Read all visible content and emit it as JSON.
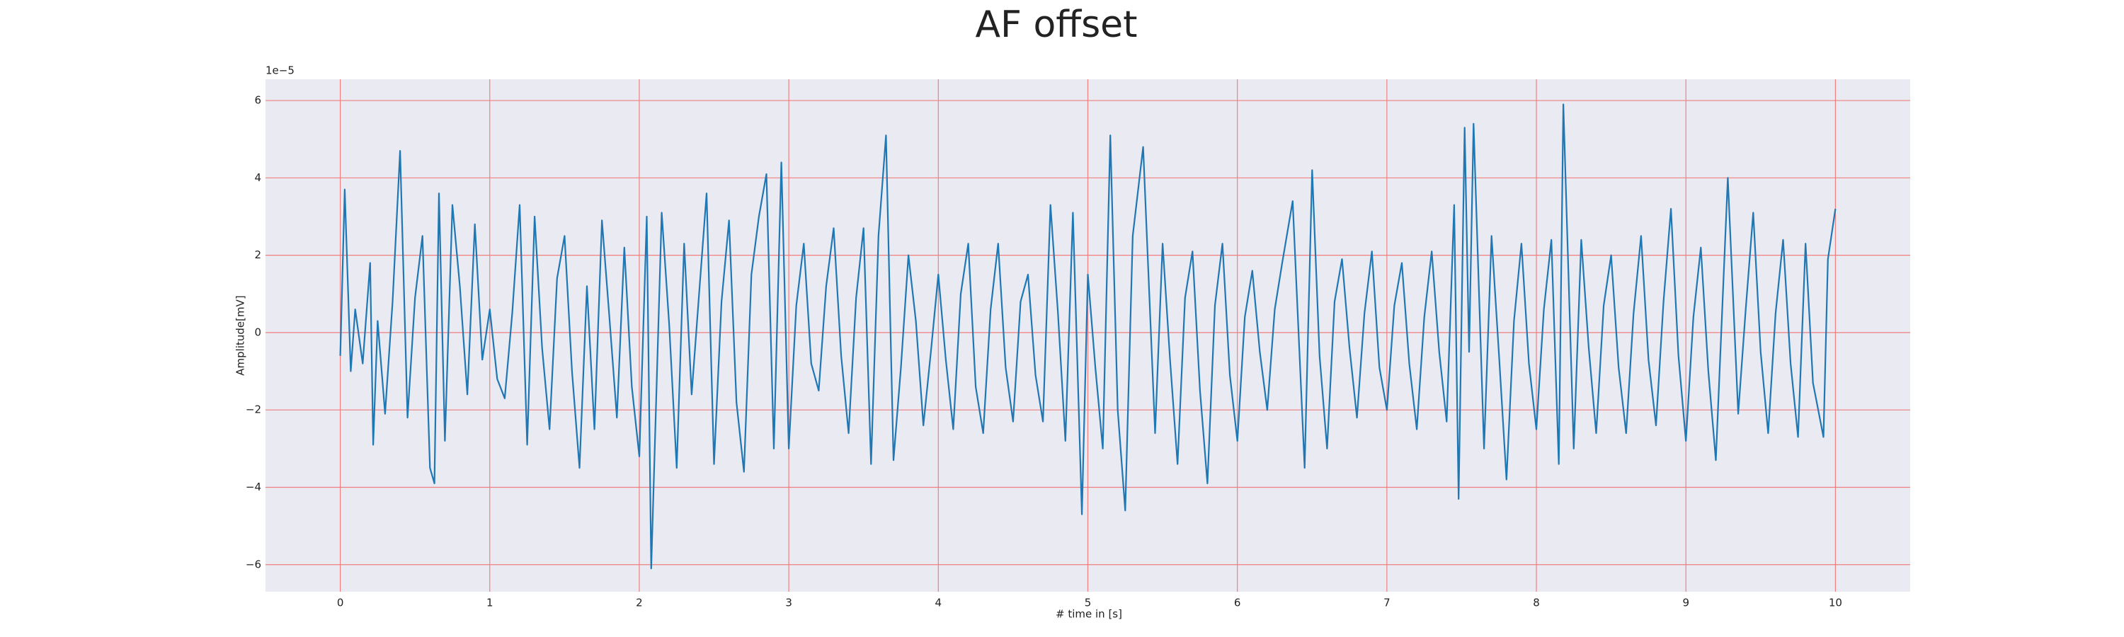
{
  "chart_data": {
    "type": "line",
    "title": "AF offset",
    "xlabel": "# time in [s]",
    "ylabel": "Amplitude[mV]",
    "offset_text": "1e−5",
    "x": [
      0,
      0.03,
      0.07,
      0.1,
      0.15,
      0.2,
      0.22,
      0.25,
      0.3,
      0.35,
      0.4,
      0.45,
      0.5,
      0.55,
      0.6,
      0.63,
      0.66,
      0.7,
      0.75,
      0.8,
      0.85,
      0.9,
      0.95,
      1.0,
      1.05,
      1.1,
      1.15,
      1.2,
      1.25,
      1.3,
      1.35,
      1.4,
      1.45,
      1.5,
      1.55,
      1.6,
      1.65,
      1.7,
      1.75,
      1.8,
      1.85,
      1.9,
      1.95,
      2.0,
      2.05,
      2.08,
      2.15,
      2.2,
      2.25,
      2.3,
      2.35,
      2.4,
      2.45,
      2.5,
      2.55,
      2.6,
      2.65,
      2.7,
      2.75,
      2.8,
      2.85,
      2.9,
      2.95,
      3.0,
      3.05,
      3.1,
      3.15,
      3.2,
      3.25,
      3.3,
      3.35,
      3.4,
      3.45,
      3.5,
      3.55,
      3.6,
      3.65,
      3.7,
      3.75,
      3.8,
      3.85,
      3.9,
      3.95,
      4.0,
      4.05,
      4.1,
      4.15,
      4.2,
      4.25,
      4.3,
      4.35,
      4.4,
      4.45,
      4.5,
      4.55,
      4.6,
      4.65,
      4.7,
      4.75,
      4.8,
      4.85,
      4.9,
      4.96,
      5.0,
      5.05,
      5.1,
      5.15,
      5.2,
      5.25,
      5.3,
      5.37,
      5.45,
      5.5,
      5.55,
      5.6,
      5.65,
      5.7,
      5.75,
      5.8,
      5.85,
      5.9,
      5.95,
      6.0,
      6.05,
      6.1,
      6.15,
      6.2,
      6.25,
      6.3,
      6.37,
      6.45,
      6.5,
      6.55,
      6.6,
      6.65,
      6.7,
      6.75,
      6.8,
      6.85,
      6.9,
      6.95,
      7.0,
      7.05,
      7.1,
      7.15,
      7.2,
      7.25,
      7.3,
      7.35,
      7.4,
      7.45,
      7.48,
      7.52,
      7.55,
      7.58,
      7.65,
      7.7,
      7.75,
      7.8,
      7.85,
      7.9,
      7.95,
      8.0,
      8.05,
      8.1,
      8.15,
      8.18,
      8.25,
      8.3,
      8.35,
      8.4,
      8.45,
      8.5,
      8.55,
      8.6,
      8.65,
      8.7,
      8.75,
      8.8,
      8.85,
      8.9,
      8.95,
      9.0,
      9.05,
      9.1,
      9.15,
      9.2,
      9.28,
      9.35,
      9.4,
      9.45,
      9.5,
      9.55,
      9.6,
      9.65,
      9.7,
      9.75,
      9.8,
      9.85,
      9.92,
      9.95,
      10.0
    ],
    "series": [
      {
        "name": "AF offset",
        "color": "#1f77b4",
        "values": [
          -0.6,
          3.7,
          -1.0,
          0.6,
          -0.8,
          1.8,
          -2.9,
          0.3,
          -2.1,
          0.8,
          4.7,
          -2.2,
          0.9,
          2.5,
          -3.5,
          -3.9,
          3.6,
          -2.8,
          3.3,
          1.2,
          -1.6,
          2.8,
          -0.7,
          0.6,
          -1.2,
          -1.7,
          0.5,
          3.3,
          -2.9,
          3.0,
          -0.4,
          -2.5,
          1.4,
          2.5,
          -1.0,
          -3.5,
          1.2,
          -2.5,
          2.9,
          0.4,
          -2.2,
          2.2,
          -1.4,
          -3.2,
          3.0,
          -6.1,
          3.1,
          0.2,
          -3.5,
          2.3,
          -1.6,
          1.0,
          3.6,
          -3.4,
          0.8,
          2.9,
          -1.8,
          -3.6,
          1.5,
          3.0,
          4.1,
          -3.0,
          4.4,
          -3.0,
          0.7,
          2.3,
          -0.8,
          -1.5,
          1.2,
          2.7,
          -0.6,
          -2.6,
          0.9,
          2.7,
          -3.4,
          2.5,
          5.1,
          -3.3,
          -0.9,
          2.0,
          0.3,
          -2.4,
          -0.5,
          1.5,
          -0.7,
          -2.5,
          1.0,
          2.3,
          -1.4,
          -2.6,
          0.6,
          2.3,
          -0.9,
          -2.3,
          0.8,
          1.5,
          -1.1,
          -2.3,
          3.3,
          0.5,
          -2.8,
          3.1,
          -4.7,
          1.5,
          -0.9,
          -3.0,
          5.1,
          -2.0,
          -4.6,
          2.5,
          4.8,
          -2.6,
          2.3,
          -0.7,
          -3.4,
          0.9,
          2.1,
          -1.5,
          -3.9,
          0.7,
          2.3,
          -1.1,
          -2.8,
          0.4,
          1.6,
          -0.5,
          -2.0,
          0.6,
          1.8,
          3.4,
          -3.5,
          4.2,
          -0.6,
          -3.0,
          0.8,
          1.9,
          -0.4,
          -2.2,
          0.5,
          2.1,
          -0.9,
          -2.0,
          0.7,
          1.8,
          -0.8,
          -2.5,
          0.4,
          2.1,
          -0.5,
          -2.3,
          3.3,
          -4.3,
          5.3,
          -0.5,
          5.4,
          -3.0,
          2.5,
          -0.6,
          -3.8,
          0.3,
          2.3,
          -0.8,
          -2.5,
          0.6,
          2.4,
          -3.4,
          5.9,
          -3.0,
          2.4,
          -0.4,
          -2.6,
          0.7,
          2.0,
          -0.9,
          -2.6,
          0.5,
          2.5,
          -0.7,
          -2.4,
          0.8,
          3.2,
          -0.6,
          -2.8,
          0.4,
          2.2,
          -1.0,
          -3.3,
          4.0,
          -2.1,
          0.6,
          3.1,
          -0.5,
          -2.6,
          0.5,
          2.4,
          -0.8,
          -2.7,
          2.3,
          -1.3,
          -2.7,
          1.9,
          3.2
        ]
      }
    ],
    "xlim": [
      -0.5,
      10.5
    ],
    "ylim": [
      -6.7,
      6.55
    ],
    "xticks": [
      0,
      1,
      2,
      3,
      4,
      5,
      6,
      7,
      8,
      9,
      10
    ],
    "yticks": [
      {
        "value": -6,
        "label": "−6"
      },
      {
        "value": -4,
        "label": "−4"
      },
      {
        "value": -2,
        "label": "−2"
      },
      0,
      2,
      4,
      6
    ],
    "grid": true,
    "grid_color": "#f08080",
    "background": "#eaeaf2"
  }
}
